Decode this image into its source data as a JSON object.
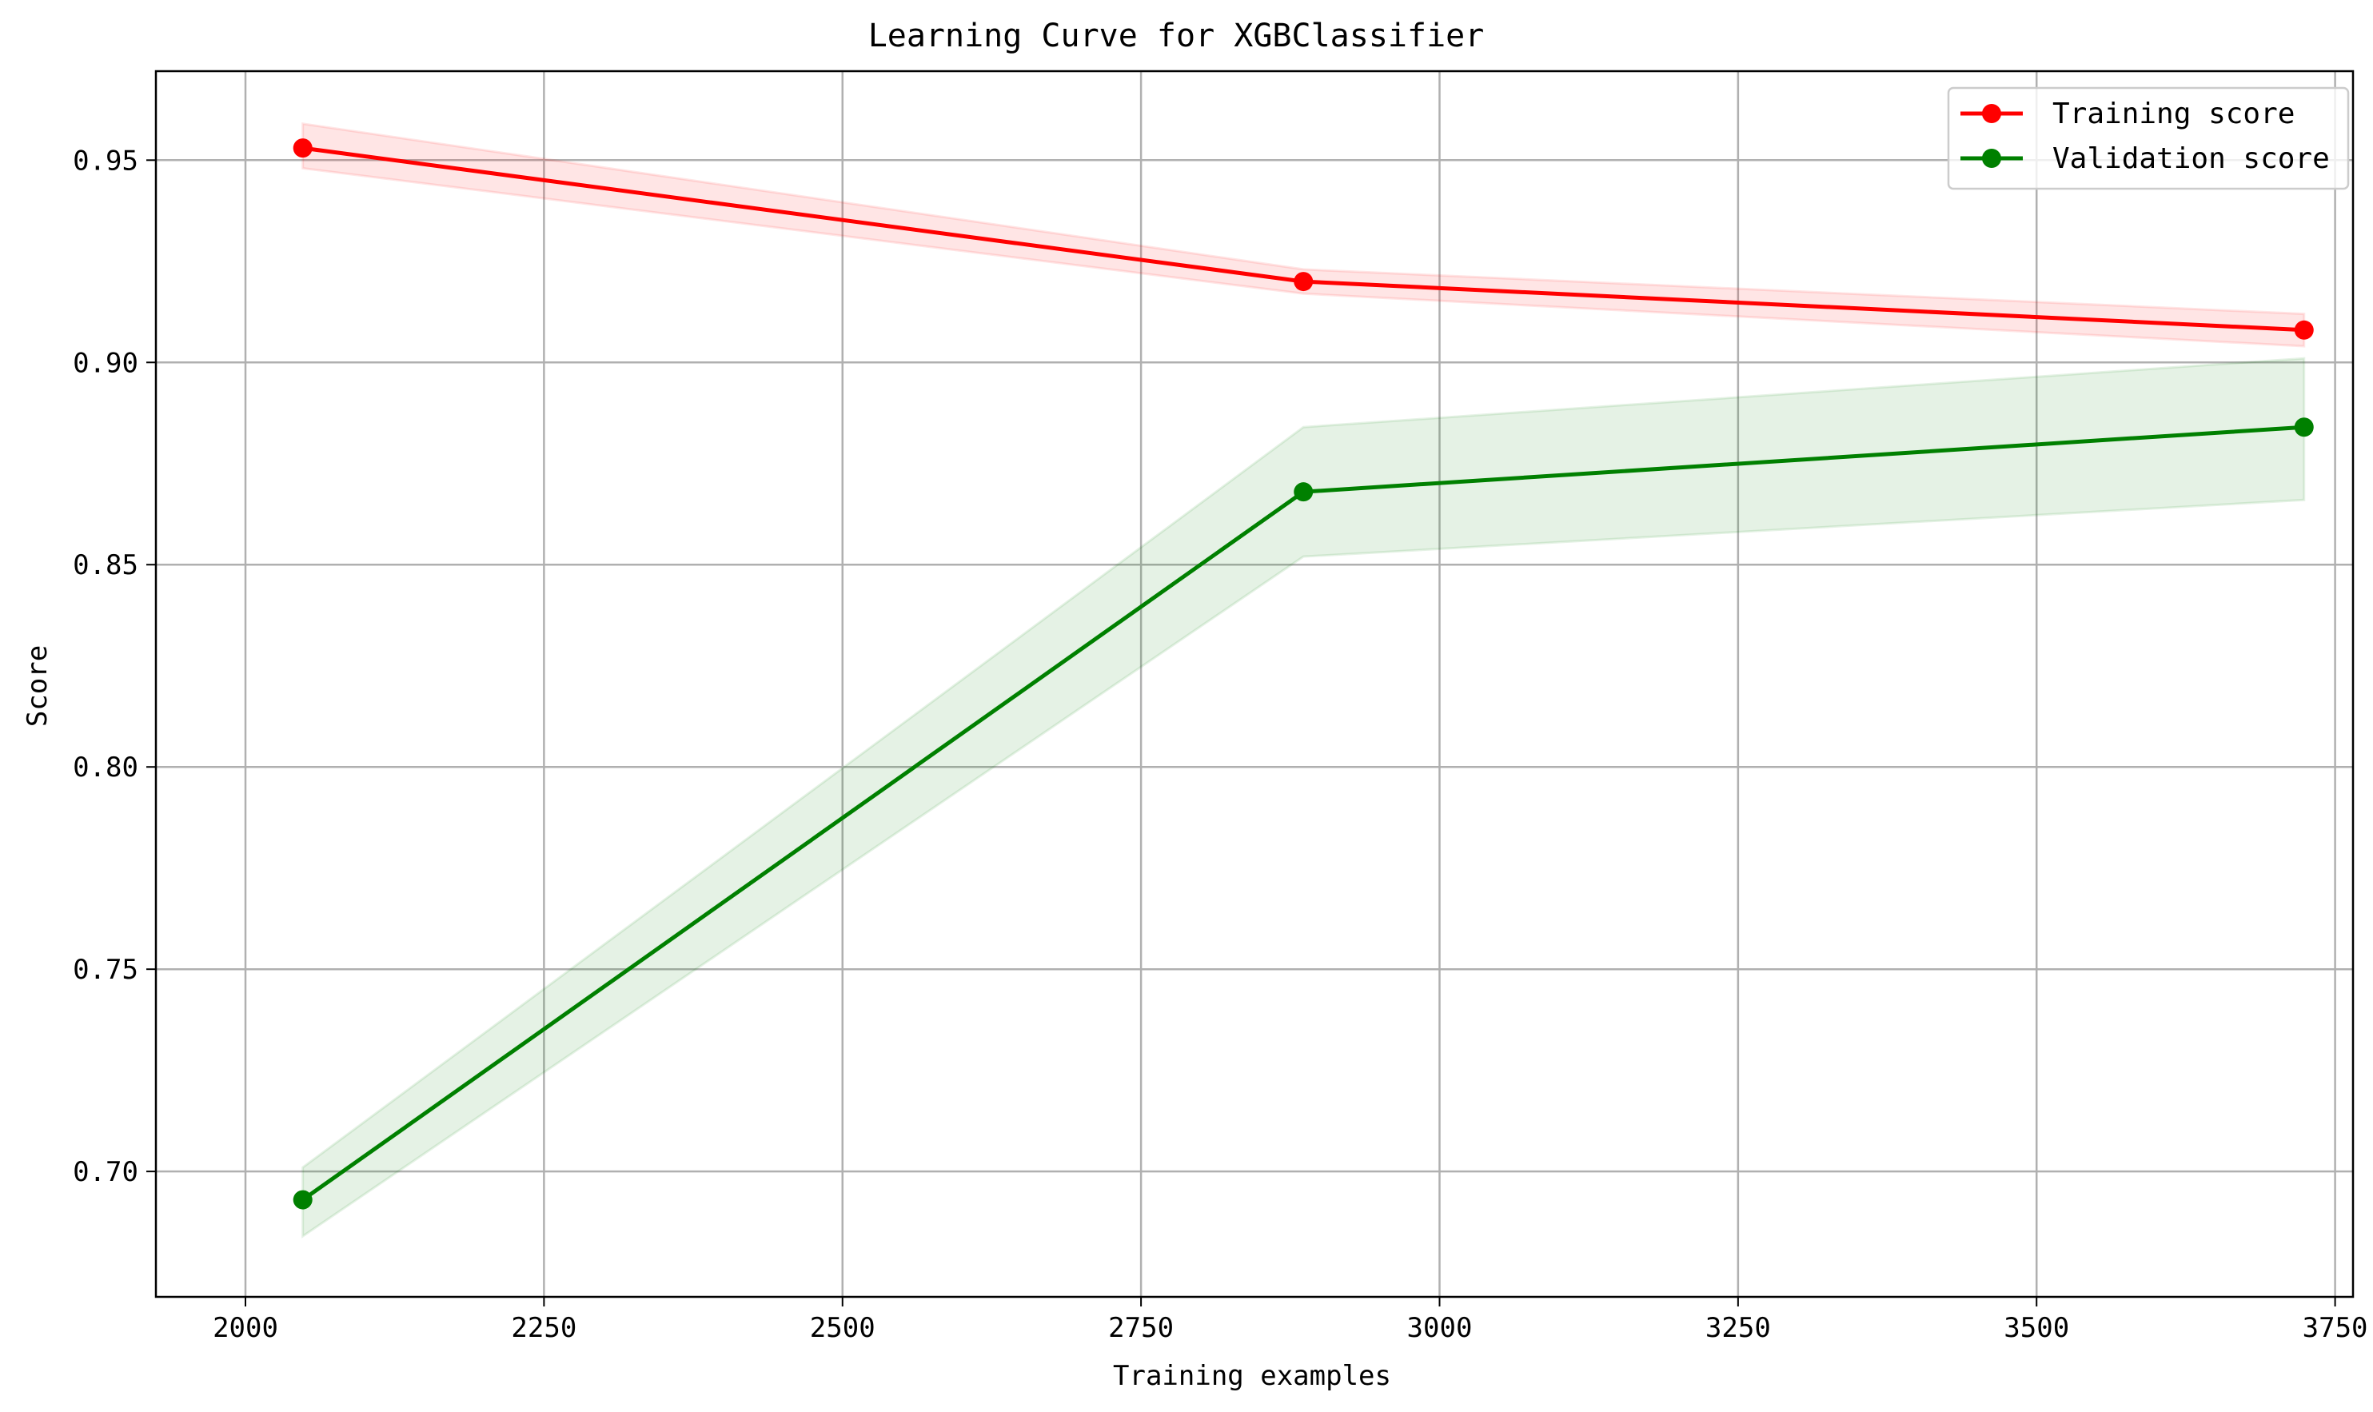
{
  "chart_data": {
    "type": "line",
    "title": "Learning Curve for XGBClassifier",
    "xlabel": "Training examples",
    "ylabel": "Score",
    "xlim": [
      1925,
      3765
    ],
    "ylim": [
      0.669,
      0.972
    ],
    "xticks": [
      2000,
      2250,
      2500,
      2750,
      3000,
      3250,
      3500,
      3750
    ],
    "xtick_labels": [
      "2000",
      "2250",
      "2500",
      "2750",
      "3000",
      "3250",
      "3500",
      "3750"
    ],
    "yticks": [
      0.7,
      0.75,
      0.8,
      0.85,
      0.9,
      0.95
    ],
    "ytick_labels": [
      "0.70",
      "0.75",
      "0.80",
      "0.85",
      "0.90",
      "0.95"
    ],
    "grid": true,
    "legend_position": "top-right",
    "x": [
      2048,
      2886,
      3724
    ],
    "series": [
      {
        "name": "Training score",
        "color": "#ff0000",
        "marker": "circle",
        "values": [
          0.953,
          0.92,
          0.908
        ],
        "band_lower": [
          0.948,
          0.917,
          0.904
        ],
        "band_upper": [
          0.959,
          0.923,
          0.912
        ]
      },
      {
        "name": "Validation score",
        "color": "#008000",
        "marker": "circle",
        "values": [
          0.693,
          0.868,
          0.884
        ],
        "band_lower": [
          0.684,
          0.852,
          0.866
        ],
        "band_upper": [
          0.701,
          0.884,
          0.901
        ]
      }
    ],
    "band_colors": {
      "Training score": "#ff0000",
      "Validation score": "#008000"
    }
  }
}
